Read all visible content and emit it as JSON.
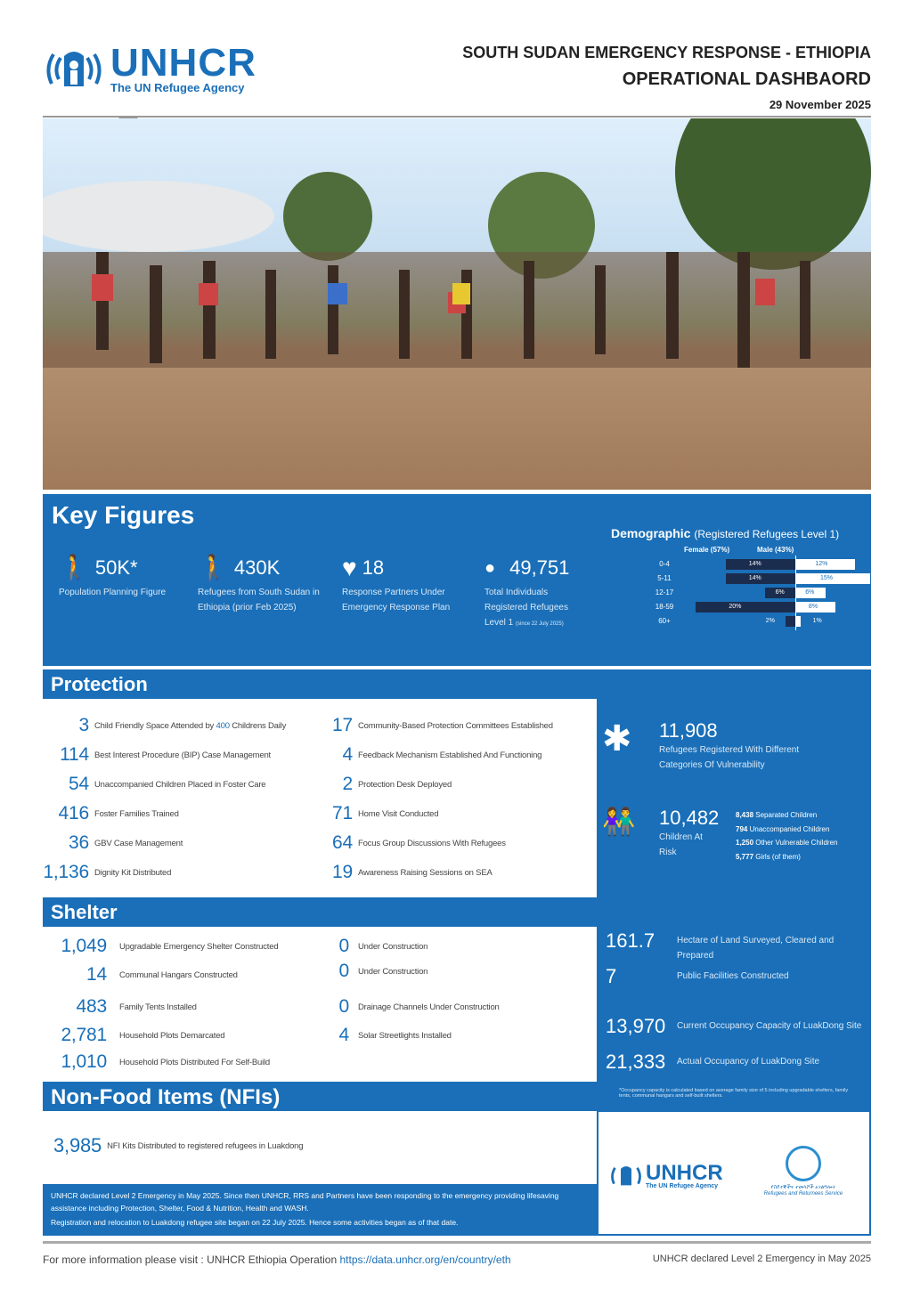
{
  "header": {
    "logo_word": "UNHCR",
    "logo_sub": "The UN Refugee Agency",
    "title_line1": "SOUTH SUDAN EMERGENCY RESPONSE - ETHIOPIA",
    "title_line2": "OPERATIONAL DASHBAORD",
    "date": "29 November 2025"
  },
  "key_figures": {
    "title": "Key Figures",
    "items": [
      {
        "icon": "walking-person-arrow-icon",
        "value": "50K*",
        "label": "Population Planning Figure"
      },
      {
        "icon": "walking-person-arrow-icon",
        "value": "430K",
        "label": "Refugees from South Sudan in Ethiopia (prior Feb 2025)"
      },
      {
        "icon": "handshake-heart-icon",
        "value": "18",
        "label": "Response Partners Under Emergency Response Plan"
      },
      {
        "icon": "person-icon",
        "value": "49,751",
        "label": "Total Individuals Registered Refugees Level 1",
        "note": "(since 22 July 2025)"
      }
    ],
    "demographic": {
      "title": "Demographic",
      "subtitle": "(Registered Refugees Level 1)",
      "female_label": "Female (57%)",
      "male_label": "Male (43%)",
      "colors": {
        "female": "#1b2d4f",
        "male": "#ffffff"
      },
      "groups": [
        {
          "age": "0-4",
          "female": 14,
          "male": 12
        },
        {
          "age": "5-11",
          "female": 14,
          "male": 15
        },
        {
          "age": "12-17",
          "female": 6,
          "male": 6
        },
        {
          "age": "18-59",
          "female": 20,
          "male": 8
        },
        {
          "age": "60+",
          "female": 2,
          "male": 1
        }
      ]
    }
  },
  "protection": {
    "title": "Protection",
    "left": [
      {
        "value": "3",
        "label": "Child Friendly Space Attended by",
        "highlight": "400",
        "label_after": "Childrens Daily"
      },
      {
        "value": "114",
        "label": "Best Interest Procedure (BIP) Case Management"
      },
      {
        "value": "54",
        "label": "Unaccompanied Children Placed in Foster Care"
      },
      {
        "value": "416",
        "label": "Foster Families Trained"
      },
      {
        "value": "36",
        "label": "GBV Case Management"
      },
      {
        "value": "1,136",
        "label": "Dignity Kit Distributed"
      }
    ],
    "right": [
      {
        "value": "17",
        "label": "Community-Based Protection Committees Established"
      },
      {
        "value": "4",
        "label": "Feedback Mechanism Established And Functioning"
      },
      {
        "value": "2",
        "label": "Protection Desk Deployed"
      },
      {
        "value": "71",
        "label": "Home Visit Conducted"
      },
      {
        "value": "64",
        "label": "Focus Group Discussions With Refugees"
      },
      {
        "value": "19",
        "label": "Awareness Raising Sessions on SEA"
      }
    ],
    "vulnerability": {
      "value": "11,908",
      "label": "Refugees Registered With Different Categories Of Vulnerability"
    },
    "children": {
      "value": "10,482",
      "label": "Children At Risk",
      "breakdown": [
        {
          "value": "8,438",
          "label": "Separated Children"
        },
        {
          "value": "794",
          "label": "Unaccompanied Children"
        },
        {
          "value": "1,250",
          "label": "Other Vulnerable Children"
        },
        {
          "value": "5,777",
          "label": "Girls (of them)"
        }
      ]
    }
  },
  "shelter": {
    "title": "Shelter",
    "left": [
      {
        "value": "1,049",
        "label": "Upgradable Emergency Shelter Constructed"
      },
      {
        "value": "14",
        "label": "Communal Hangars Constructed"
      },
      {
        "value": "483",
        "label": "Family Tents Installed"
      },
      {
        "value": "2,781",
        "label": "Household Plots Demarcated"
      },
      {
        "value": "1,010",
        "label": "Household Plots Distributed For Self-Build"
      }
    ],
    "mid": [
      {
        "value": "0",
        "label": "Under Construction"
      },
      {
        "value": "0",
        "label": "Under Construction"
      },
      {
        "value": "0",
        "label": "Drainage Channels Under Construction"
      },
      {
        "value": "4",
        "label": "Solar Streetlights Installed"
      }
    ],
    "right": [
      {
        "value": "161.7",
        "label": "Hectare of Land Surveyed, Cleared and Prepared"
      },
      {
        "value": "7",
        "label": "Public Facilities Constructed"
      },
      {
        "value": "13,970",
        "label": "Current Occupancy Capacity of LuakDong Site"
      },
      {
        "value": "21,333",
        "label": "Actual Occupancy of LuakDong Site"
      }
    ],
    "footnote": "*Occupancy capacity is calculated based on average family size of 5 including upgradable shelters, family tents, communal hangars and self-built shelters."
  },
  "nfi": {
    "title": "Non-Food Items (NFIs)",
    "value": "3,985",
    "label": "NFI Kits Distributed to registered refugees in Luakdong"
  },
  "note": {
    "p1": "UNHCR declared Level 2 Emergency in May 2025. Since then UNHCR, RRS and Partners have been responding to the emergency providing lifesaving assistance including Protection, Shelter, Food & Nutrition, Health and WASH.",
    "p2": "Registration and relocation to Luakdong refugee site began on 22 July 2025. Hence some activities began as of that date."
  },
  "partner_logo": {
    "word": "UNHCR",
    "sub": "The UN Refugee Agency",
    "rrs_amharic": "የስደተኞችና ተመላሾች አገልግሎት",
    "rrs": "Refugees and Returnees Service"
  },
  "footer": {
    "prefix": "For more information please visit : UNHCR Ethiopia Operation",
    "link": "https://data.unhcr.org/en/country/eth",
    "right": "UNHCR declared Level 2 Emergency in May 2025"
  }
}
